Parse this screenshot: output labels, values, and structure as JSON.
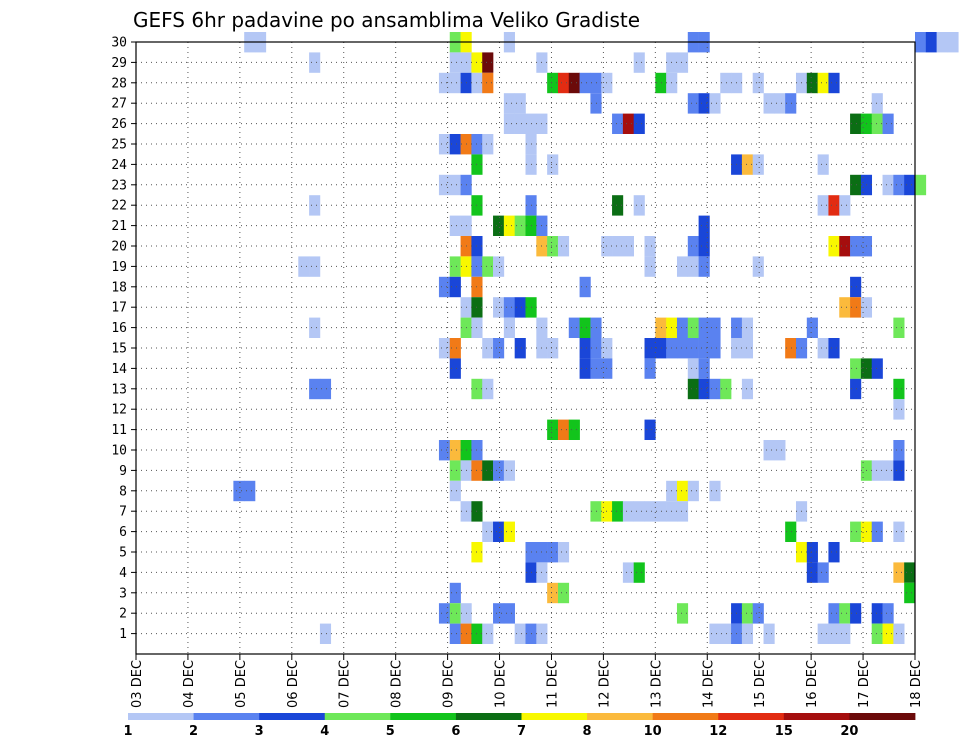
{
  "chart_data": {
    "type": "heatmap",
    "title": "GEFS 6hr padavine po ansamblima Veliko Gradiste",
    "xlabel": "",
    "ylabel": "",
    "x_ticks": [
      "03 DEC",
      "04 DEC",
      "05 DEC",
      "06 DEC",
      "07 DEC",
      "08 DEC",
      "09 DEC",
      "10 DEC",
      "11 DEC",
      "12 DEC",
      "13 DEC",
      "14 DEC",
      "15 DEC",
      "16 DEC",
      "17 DEC",
      "18 DEC"
    ],
    "y_ticks": [
      "1",
      "2",
      "3",
      "4",
      "5",
      "6",
      "7",
      "8",
      "9",
      "10",
      "11",
      "12",
      "13",
      "14",
      "15",
      "16",
      "17",
      "18",
      "19",
      "20",
      "21",
      "22",
      "23",
      "24",
      "25",
      "26",
      "27",
      "28",
      "29",
      "30"
    ],
    "time_step_hours": 6,
    "grid": true,
    "legend": {
      "position": "bottom",
      "thresholds": [
        "1",
        "2",
        "3",
        "4",
        "5",
        "6",
        "7",
        "8",
        "10",
        "12",
        "15",
        "20"
      ],
      "colors": [
        "#b4c7f5",
        "#5a82f0",
        "#1a46d8",
        "#6ee859",
        "#12c41c",
        "#0b6e14",
        "#f8f800",
        "#fbba3c",
        "#f17a17",
        "#e22c12",
        "#a50e0e",
        "#6b0a0a"
      ]
    },
    "cells": [
      [
        30,
        10,
        0
      ],
      [
        30,
        11,
        0
      ],
      [
        30,
        29,
        3
      ],
      [
        30,
        30,
        6
      ],
      [
        30,
        34,
        0
      ],
      [
        30,
        51,
        1
      ],
      [
        30,
        52,
        1
      ],
      [
        30,
        72,
        1
      ],
      [
        30,
        73,
        2
      ],
      [
        30,
        74,
        0
      ],
      [
        30,
        75,
        0
      ],
      [
        29,
        16,
        0
      ],
      [
        29,
        29,
        0
      ],
      [
        29,
        30,
        0
      ],
      [
        29,
        31,
        6
      ],
      [
        29,
        32,
        11
      ],
      [
        29,
        37,
        0
      ],
      [
        29,
        46,
        0
      ],
      [
        29,
        49,
        0
      ],
      [
        29,
        50,
        0
      ],
      [
        28,
        28,
        0
      ],
      [
        28,
        29,
        0
      ],
      [
        28,
        30,
        2
      ],
      [
        28,
        31,
        0
      ],
      [
        28,
        32,
        8
      ],
      [
        28,
        38,
        4
      ],
      [
        28,
        39,
        9
      ],
      [
        28,
        40,
        11
      ],
      [
        28,
        41,
        1
      ],
      [
        28,
        42,
        1
      ],
      [
        28,
        43,
        0
      ],
      [
        28,
        48,
        4
      ],
      [
        28,
        49,
        0
      ],
      [
        28,
        54,
        0
      ],
      [
        28,
        55,
        0
      ],
      [
        28,
        57,
        0
      ],
      [
        28,
        61,
        0
      ],
      [
        28,
        62,
        5
      ],
      [
        28,
        63,
        6
      ],
      [
        28,
        64,
        2
      ],
      [
        27,
        34,
        0
      ],
      [
        27,
        35,
        0
      ],
      [
        27,
        42,
        1
      ],
      [
        27,
        51,
        1
      ],
      [
        27,
        52,
        2
      ],
      [
        27,
        53,
        0
      ],
      [
        27,
        58,
        0
      ],
      [
        27,
        59,
        0
      ],
      [
        27,
        60,
        1
      ],
      [
        27,
        68,
        0
      ],
      [
        26,
        34,
        0
      ],
      [
        26,
        35,
        0
      ],
      [
        26,
        36,
        0
      ],
      [
        26,
        37,
        0
      ],
      [
        26,
        44,
        1
      ],
      [
        26,
        45,
        10
      ],
      [
        26,
        46,
        2
      ],
      [
        26,
        66,
        5
      ],
      [
        26,
        67,
        4
      ],
      [
        26,
        68,
        3
      ],
      [
        26,
        69,
        1
      ],
      [
        25,
        28,
        0
      ],
      [
        25,
        29,
        2
      ],
      [
        25,
        30,
        8
      ],
      [
        25,
        31,
        1
      ],
      [
        25,
        32,
        0
      ],
      [
        25,
        36,
        0
      ],
      [
        24,
        31,
        4
      ],
      [
        24,
        36,
        0
      ],
      [
        24,
        38,
        0
      ],
      [
        24,
        55,
        2
      ],
      [
        24,
        56,
        7
      ],
      [
        24,
        57,
        0
      ],
      [
        24,
        63,
        0
      ],
      [
        23,
        28,
        0
      ],
      [
        23,
        29,
        0
      ],
      [
        23,
        30,
        1
      ],
      [
        23,
        66,
        5
      ],
      [
        23,
        67,
        2
      ],
      [
        23,
        69,
        0
      ],
      [
        23,
        70,
        1
      ],
      [
        23,
        71,
        2
      ],
      [
        23,
        72,
        3
      ],
      [
        22,
        16,
        0
      ],
      [
        22,
        31,
        4
      ],
      [
        22,
        36,
        1
      ],
      [
        22,
        44,
        5
      ],
      [
        22,
        46,
        0
      ],
      [
        22,
        63,
        0
      ],
      [
        22,
        64,
        9
      ],
      [
        22,
        65,
        0
      ],
      [
        21,
        29,
        0
      ],
      [
        21,
        30,
        0
      ],
      [
        21,
        33,
        5
      ],
      [
        21,
        34,
        6
      ],
      [
        21,
        35,
        3
      ],
      [
        21,
        36,
        4
      ],
      [
        21,
        37,
        1
      ],
      [
        21,
        52,
        2
      ],
      [
        20,
        30,
        8
      ],
      [
        20,
        31,
        2
      ],
      [
        20,
        37,
        7
      ],
      [
        20,
        38,
        3
      ],
      [
        20,
        39,
        0
      ],
      [
        20,
        43,
        0
      ],
      [
        20,
        44,
        0
      ],
      [
        20,
        45,
        0
      ],
      [
        20,
        47,
        0
      ],
      [
        20,
        51,
        1
      ],
      [
        20,
        52,
        2
      ],
      [
        20,
        64,
        6
      ],
      [
        20,
        65,
        10
      ],
      [
        20,
        66,
        1
      ],
      [
        20,
        67,
        1
      ],
      [
        19,
        15,
        0
      ],
      [
        19,
        16,
        0
      ],
      [
        19,
        29,
        3
      ],
      [
        19,
        30,
        6
      ],
      [
        19,
        31,
        1
      ],
      [
        19,
        32,
        3
      ],
      [
        19,
        33,
        0
      ],
      [
        19,
        47,
        0
      ],
      [
        19,
        50,
        0
      ],
      [
        19,
        51,
        0
      ],
      [
        19,
        52,
        1
      ],
      [
        19,
        57,
        0
      ],
      [
        18,
        28,
        1
      ],
      [
        18,
        29,
        2
      ],
      [
        18,
        31,
        8
      ],
      [
        18,
        41,
        1
      ],
      [
        18,
        66,
        2
      ],
      [
        17,
        30,
        0
      ],
      [
        17,
        31,
        5
      ],
      [
        17,
        33,
        0
      ],
      [
        17,
        34,
        1
      ],
      [
        17,
        35,
        2
      ],
      [
        17,
        36,
        4
      ],
      [
        17,
        65,
        7
      ],
      [
        17,
        66,
        8
      ],
      [
        17,
        67,
        0
      ],
      [
        16,
        16,
        0
      ],
      [
        16,
        30,
        3
      ],
      [
        16,
        31,
        0
      ],
      [
        16,
        34,
        0
      ],
      [
        16,
        37,
        0
      ],
      [
        16,
        40,
        1
      ],
      [
        16,
        41,
        4
      ],
      [
        16,
        42,
        1
      ],
      [
        16,
        48,
        7
      ],
      [
        16,
        49,
        6
      ],
      [
        16,
        50,
        1
      ],
      [
        16,
        51,
        3
      ],
      [
        16,
        52,
        1
      ],
      [
        16,
        53,
        1
      ],
      [
        16,
        55,
        1
      ],
      [
        16,
        56,
        0
      ],
      [
        16,
        62,
        1
      ],
      [
        16,
        70,
        3
      ],
      [
        15,
        28,
        0
      ],
      [
        15,
        29,
        8
      ],
      [
        15,
        32,
        0
      ],
      [
        15,
        33,
        1
      ],
      [
        15,
        35,
        2
      ],
      [
        15,
        37,
        0
      ],
      [
        15,
        38,
        0
      ],
      [
        15,
        41,
        2
      ],
      [
        15,
        42,
        1
      ],
      [
        15,
        43,
        0
      ],
      [
        15,
        47,
        2
      ],
      [
        15,
        48,
        2
      ],
      [
        15,
        49,
        1
      ],
      [
        15,
        50,
        1
      ],
      [
        15,
        51,
        1
      ],
      [
        15,
        52,
        1
      ],
      [
        15,
        53,
        1
      ],
      [
        15,
        55,
        0
      ],
      [
        15,
        56,
        0
      ],
      [
        15,
        60,
        8
      ],
      [
        15,
        61,
        1
      ],
      [
        15,
        63,
        0
      ],
      [
        15,
        64,
        2
      ],
      [
        14,
        29,
        2
      ],
      [
        14,
        41,
        2
      ],
      [
        14,
        42,
        1
      ],
      [
        14,
        43,
        1
      ],
      [
        14,
        47,
        1
      ],
      [
        14,
        51,
        0
      ],
      [
        14,
        52,
        1
      ],
      [
        14,
        66,
        3
      ],
      [
        14,
        67,
        5
      ],
      [
        14,
        68,
        2
      ],
      [
        13,
        16,
        1
      ],
      [
        13,
        17,
        1
      ],
      [
        13,
        31,
        3
      ],
      [
        13,
        32,
        0
      ],
      [
        13,
        51,
        5
      ],
      [
        13,
        52,
        2
      ],
      [
        13,
        53,
        1
      ],
      [
        13,
        54,
        3
      ],
      [
        13,
        56,
        0
      ],
      [
        13,
        66,
        2
      ],
      [
        13,
        70,
        4
      ],
      [
        12,
        70,
        0
      ],
      [
        11,
        38,
        4
      ],
      [
        11,
        39,
        8
      ],
      [
        11,
        40,
        4
      ],
      [
        11,
        47,
        2
      ],
      [
        10,
        28,
        1
      ],
      [
        10,
        29,
        7
      ],
      [
        10,
        30,
        4
      ],
      [
        10,
        31,
        1
      ],
      [
        10,
        58,
        0
      ],
      [
        10,
        59,
        0
      ],
      [
        10,
        70,
        1
      ],
      [
        9,
        29,
        3
      ],
      [
        9,
        30,
        0
      ],
      [
        9,
        31,
        8
      ],
      [
        9,
        32,
        5
      ],
      [
        9,
        33,
        1
      ],
      [
        9,
        34,
        0
      ],
      [
        9,
        67,
        3
      ],
      [
        9,
        68,
        0
      ],
      [
        9,
        69,
        0
      ],
      [
        9,
        70,
        2
      ],
      [
        8,
        9,
        1
      ],
      [
        8,
        10,
        1
      ],
      [
        8,
        29,
        0
      ],
      [
        8,
        49,
        0
      ],
      [
        8,
        50,
        6
      ],
      [
        8,
        51,
        0
      ],
      [
        8,
        53,
        0
      ],
      [
        7,
        30,
        0
      ],
      [
        7,
        31,
        5
      ],
      [
        7,
        42,
        3
      ],
      [
        7,
        43,
        6
      ],
      [
        7,
        44,
        4
      ],
      [
        7,
        45,
        0
      ],
      [
        7,
        46,
        0
      ],
      [
        7,
        47,
        0
      ],
      [
        7,
        48,
        0
      ],
      [
        7,
        49,
        0
      ],
      [
        7,
        50,
        0
      ],
      [
        7,
        61,
        0
      ],
      [
        6,
        32,
        0
      ],
      [
        6,
        33,
        2
      ],
      [
        6,
        34,
        6
      ],
      [
        6,
        60,
        4
      ],
      [
        6,
        66,
        3
      ],
      [
        6,
        67,
        6
      ],
      [
        6,
        68,
        1
      ],
      [
        6,
        70,
        0
      ],
      [
        5,
        31,
        6
      ],
      [
        5,
        36,
        1
      ],
      [
        5,
        37,
        1
      ],
      [
        5,
        38,
        1
      ],
      [
        5,
        39,
        0
      ],
      [
        5,
        61,
        6
      ],
      [
        5,
        62,
        2
      ],
      [
        5,
        64,
        2
      ],
      [
        4,
        36,
        2
      ],
      [
        4,
        37,
        0
      ],
      [
        4,
        45,
        0
      ],
      [
        4,
        46,
        4
      ],
      [
        4,
        62,
        2
      ],
      [
        4,
        63,
        1
      ],
      [
        4,
        70,
        7
      ],
      [
        4,
        71,
        5
      ],
      [
        3,
        29,
        1
      ],
      [
        3,
        38,
        7
      ],
      [
        3,
        39,
        3
      ],
      [
        3,
        71,
        4
      ],
      [
        2,
        28,
        1
      ],
      [
        2,
        29,
        3
      ],
      [
        2,
        30,
        0
      ],
      [
        2,
        33,
        1
      ],
      [
        2,
        34,
        1
      ],
      [
        2,
        50,
        3
      ],
      [
        2,
        55,
        2
      ],
      [
        2,
        56,
        3
      ],
      [
        2,
        57,
        1
      ],
      [
        2,
        64,
        1
      ],
      [
        2,
        65,
        3
      ],
      [
        2,
        66,
        2
      ],
      [
        2,
        68,
        2
      ],
      [
        2,
        69,
        1
      ],
      [
        1,
        17,
        0
      ],
      [
        1,
        29,
        1
      ],
      [
        1,
        30,
        8
      ],
      [
        1,
        31,
        4
      ],
      [
        1,
        32,
        0
      ],
      [
        1,
        35,
        0
      ],
      [
        1,
        36,
        1
      ],
      [
        1,
        37,
        0
      ],
      [
        1,
        53,
        0
      ],
      [
        1,
        54,
        0
      ],
      [
        1,
        55,
        1
      ],
      [
        1,
        56,
        0
      ],
      [
        1,
        58,
        0
      ],
      [
        1,
        63,
        0
      ],
      [
        1,
        64,
        0
      ],
      [
        1,
        65,
        0
      ],
      [
        1,
        68,
        3
      ],
      [
        1,
        69,
        6
      ],
      [
        1,
        70,
        0
      ]
    ]
  }
}
